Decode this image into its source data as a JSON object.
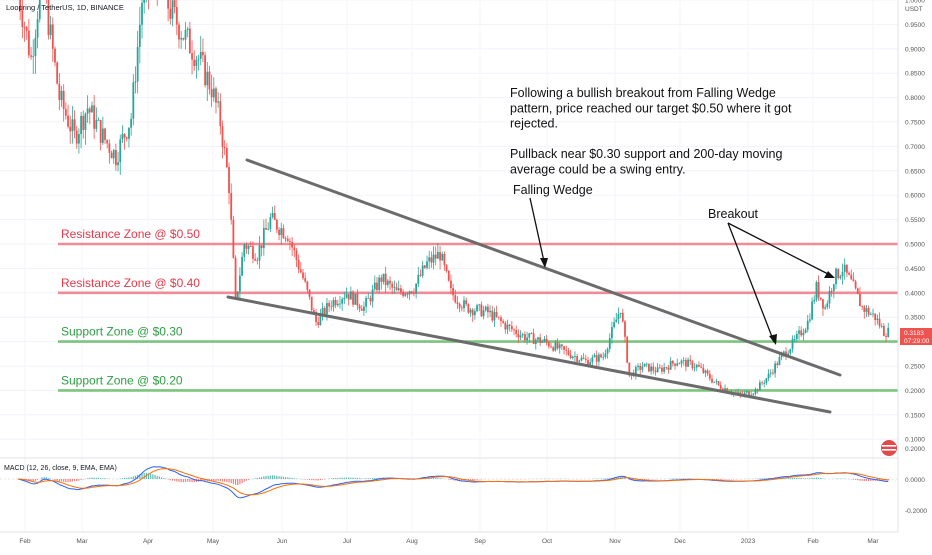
{
  "header": {
    "symbol_label": "Loopring / TetherUS, 1D, BINANCE",
    "currency": "USDT"
  },
  "colors": {
    "up": "#26a69a",
    "down": "#ef5350",
    "resistance": "#f28b96",
    "support": "#7cc47f",
    "zone_resistance_text": "#e5394a",
    "zone_support_text": "#2e9e43",
    "wedge": "#6b6b6b",
    "macd_line": "#2962ff",
    "signal_line": "#ff6d00",
    "current_price_bg": "#ef5350"
  },
  "annotations": {
    "note_lines": [
      "Following a bullish breakout from Falling Wedge",
      "pattern, price reached our target $0.50 where it got",
      "rejected.",
      "",
      "Pullback near $0.30 support and 200-day moving",
      "average could be a swing entry."
    ],
    "falling_wedge_label": "Falling Wedge",
    "breakout_label": "Breakout"
  },
  "zones": [
    {
      "label": "Resistance Zone @ $0.50",
      "price": 0.5,
      "kind": "resistance"
    },
    {
      "label": "Resistance Zone @ $0.40",
      "price": 0.4,
      "kind": "resistance"
    },
    {
      "label": "Support Zone @ $0.30",
      "price": 0.3,
      "kind": "support"
    },
    {
      "label": "Support Zone @ $0.20",
      "price": 0.2,
      "kind": "support"
    }
  ],
  "current_price": {
    "value": "0.3183",
    "countdown": "07:29:00"
  },
  "macd": {
    "label": "MACD (12, 26, close, 9, EMA, EMA)",
    "ticks": [
      "0.2000",
      "0.0000",
      "-0.2000"
    ]
  },
  "chart_data": {
    "type": "candlestick",
    "title": "Loopring / TetherUS, 1D, BINANCE",
    "xlabel": "",
    "ylabel": "USDT",
    "ylim": [
      0.08,
      1.08
    ],
    "y_ticks": [
      "1.0000",
      "0.9500",
      "0.9000",
      "0.8500",
      "0.8000",
      "0.7500",
      "0.7000",
      "0.6500",
      "0.6000",
      "0.5500",
      "0.5000",
      "0.4500",
      "0.4000",
      "0.3500",
      "0.3000",
      "0.2500",
      "0.2000",
      "0.1500",
      "0.1000"
    ],
    "x_ticks": [
      "Feb",
      "Mar",
      "Apr",
      "May",
      "Jun",
      "Jul",
      "Aug",
      "Sep",
      "Oct",
      "Nov",
      "Dec",
      "2023",
      "Feb",
      "Mar"
    ],
    "price_path": [
      {
        "date": "2022-02-01",
        "close": 1.02
      },
      {
        "date": "2022-02-07",
        "close": 0.88
      },
      {
        "date": "2022-02-12",
        "close": 1.05
      },
      {
        "date": "2022-02-20",
        "close": 0.8
      },
      {
        "date": "2022-02-27",
        "close": 0.72
      },
      {
        "date": "2022-03-05",
        "close": 0.78
      },
      {
        "date": "2022-03-12",
        "close": 0.72
      },
      {
        "date": "2022-03-18",
        "close": 0.68
      },
      {
        "date": "2022-03-25",
        "close": 0.76
      },
      {
        "date": "2022-03-30",
        "close": 1.0
      },
      {
        "date": "2022-04-05",
        "close": 1.05
      },
      {
        "date": "2022-04-12",
        "close": 0.98
      },
      {
        "date": "2022-04-18",
        "close": 0.93
      },
      {
        "date": "2022-04-25",
        "close": 0.88
      },
      {
        "date": "2022-05-01",
        "close": 0.82
      },
      {
        "date": "2022-05-05",
        "close": 0.75
      },
      {
        "date": "2022-05-09",
        "close": 0.62
      },
      {
        "date": "2022-05-12",
        "close": 0.38
      },
      {
        "date": "2022-05-16",
        "close": 0.5
      },
      {
        "date": "2022-05-22",
        "close": 0.48
      },
      {
        "date": "2022-05-28",
        "close": 0.55
      },
      {
        "date": "2022-06-05",
        "close": 0.52
      },
      {
        "date": "2022-06-12",
        "close": 0.43
      },
      {
        "date": "2022-06-18",
        "close": 0.34
      },
      {
        "date": "2022-06-25",
        "close": 0.38
      },
      {
        "date": "2022-07-02",
        "close": 0.4
      },
      {
        "date": "2022-07-10",
        "close": 0.37
      },
      {
        "date": "2022-07-18",
        "close": 0.43
      },
      {
        "date": "2022-07-25",
        "close": 0.4
      },
      {
        "date": "2022-08-02",
        "close": 0.41
      },
      {
        "date": "2022-08-08",
        "close": 0.46
      },
      {
        "date": "2022-08-14",
        "close": 0.48
      },
      {
        "date": "2022-08-19",
        "close": 0.4
      },
      {
        "date": "2022-08-26",
        "close": 0.37
      },
      {
        "date": "2022-09-05",
        "close": 0.36
      },
      {
        "date": "2022-09-14",
        "close": 0.33
      },
      {
        "date": "2022-09-22",
        "close": 0.31
      },
      {
        "date": "2022-10-01",
        "close": 0.3
      },
      {
        "date": "2022-10-10",
        "close": 0.28
      },
      {
        "date": "2022-10-20",
        "close": 0.26
      },
      {
        "date": "2022-10-28",
        "close": 0.27
      },
      {
        "date": "2022-11-05",
        "close": 0.37
      },
      {
        "date": "2022-11-09",
        "close": 0.23
      },
      {
        "date": "2022-11-15",
        "close": 0.25
      },
      {
        "date": "2022-11-22",
        "close": 0.24
      },
      {
        "date": "2022-12-01",
        "close": 0.26
      },
      {
        "date": "2022-12-10",
        "close": 0.25
      },
      {
        "date": "2022-12-20",
        "close": 0.21
      },
      {
        "date": "2022-12-30",
        "close": 0.19
      },
      {
        "date": "2023-01-06",
        "close": 0.2
      },
      {
        "date": "2023-01-12",
        "close": 0.23
      },
      {
        "date": "2023-01-18",
        "close": 0.27
      },
      {
        "date": "2023-01-24",
        "close": 0.3
      },
      {
        "date": "2023-01-30",
        "close": 0.34
      },
      {
        "date": "2023-02-03",
        "close": 0.41
      },
      {
        "date": "2023-02-07",
        "close": 0.37
      },
      {
        "date": "2023-02-11",
        "close": 0.43
      },
      {
        "date": "2023-02-15",
        "close": 0.45
      },
      {
        "date": "2023-02-19",
        "close": 0.42
      },
      {
        "date": "2023-02-24",
        "close": 0.37
      },
      {
        "date": "2023-03-02",
        "close": 0.35
      },
      {
        "date": "2023-03-06",
        "close": 0.32
      }
    ]
  }
}
